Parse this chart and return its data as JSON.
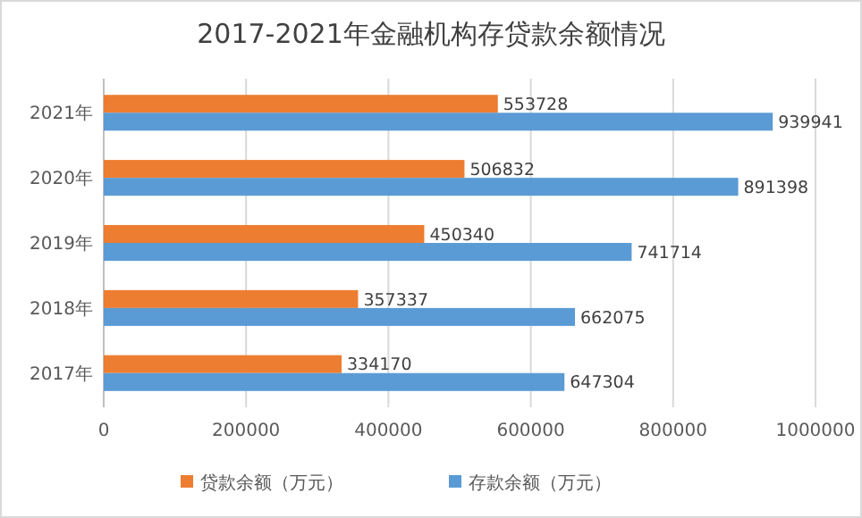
{
  "chart_data": {
    "type": "bar",
    "orientation": "horizontal",
    "title": "2017-2021年金融机构存贷款余额情况",
    "categories": [
      "2021年",
      "2020年",
      "2019年",
      "2018年",
      "2017年"
    ],
    "series": [
      {
        "name": "贷款余额（万元）",
        "color": "#ed7d31",
        "values": [
          553728,
          506832,
          450340,
          357337,
          334170
        ]
      },
      {
        "name": "存款余额（万元）",
        "color": "#5b9bd5",
        "values": [
          939941,
          891398,
          741714,
          662075,
          647304
        ]
      }
    ],
    "xlim": [
      0,
      1000000
    ],
    "xticks": [
      0,
      200000,
      400000,
      600000,
      800000,
      1000000
    ],
    "grid": "x",
    "legend": "bottom",
    "data_labels": true
  }
}
